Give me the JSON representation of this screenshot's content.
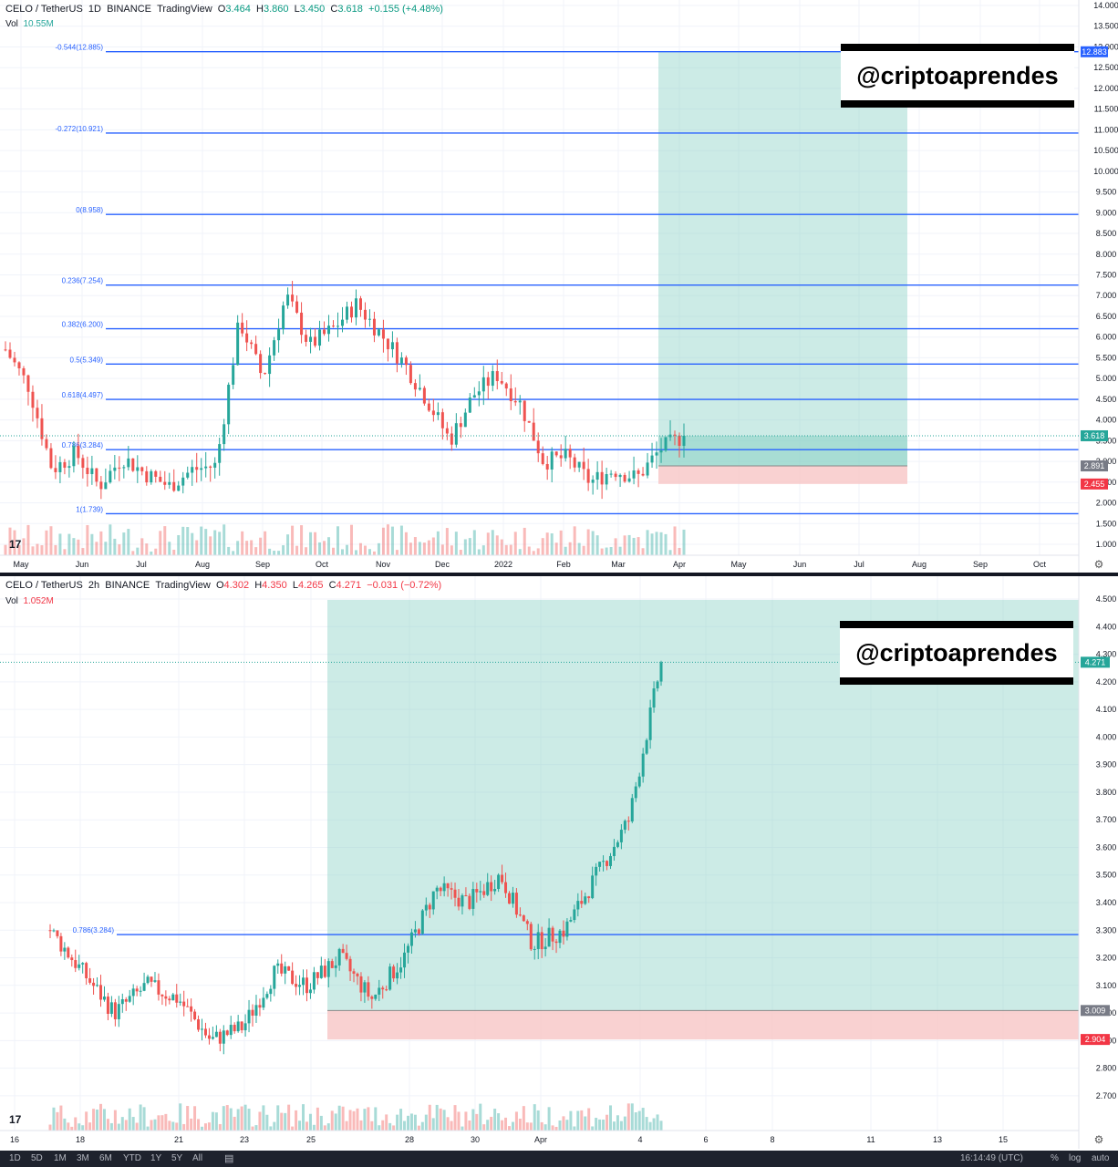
{
  "colors": {
    "up": "#26a69a",
    "down": "#ef5350",
    "fib": "#2962ff",
    "target_zone": "#8fd3c8",
    "stop_zone": "#f7c6c6",
    "axis_text": "#131722"
  },
  "top": {
    "symbol": "CELO / TetherUS",
    "interval": "1D",
    "exchange": "BINANCE",
    "source": "TradingView",
    "o_label": "O",
    "o": "3.464",
    "h_label": "H",
    "h": "3.860",
    "l_label": "L",
    "l": "3.450",
    "c_label": "C",
    "c": "3.618",
    "change": "+0.155 (+4.48%)",
    "vol_label": "Vol",
    "vol": "10.55M"
  },
  "bottom": {
    "symbol": "CELO / TetherUS",
    "interval": "2h",
    "exchange": "BINANCE",
    "source": "TradingView",
    "o_label": "O",
    "o": "4.302",
    "h_label": "H",
    "h": "4.350",
    "l_label": "L",
    "l": "4.265",
    "c_label": "C",
    "c": "4.271",
    "change": "−0.031 (−0.72%)",
    "vol_label": "Vol",
    "vol": "1.052M"
  },
  "watermark": "@criptoaprendes",
  "bottom_bar": {
    "ranges": [
      "1D",
      "5D",
      "1M",
      "3M",
      "6M",
      "YTD",
      "1Y",
      "5Y",
      "All"
    ],
    "time": "16:14:49 (UTC)",
    "percent": "%",
    "log": "log",
    "auto": "auto"
  },
  "chart_data": [
    {
      "type": "candlestick",
      "title": "CELO / TetherUS 1D BINANCE",
      "ylim": [
        1.0,
        14.0
      ],
      "y_ticks": [
        "1.000",
        "1.500",
        "2.000",
        "2.500",
        "3.000",
        "3.500",
        "4.000",
        "4.500",
        "5.000",
        "5.500",
        "6.000",
        "6.500",
        "7.000",
        "7.500",
        "8.000",
        "8.500",
        "9.000",
        "9.500",
        "10.000",
        "10.500",
        "11.000",
        "11.500",
        "12.000",
        "12.500",
        "13.000",
        "13.500",
        "14.000"
      ],
      "x_ticks": [
        "May",
        "Jun",
        "Jul",
        "Aug",
        "Sep",
        "Oct",
        "Nov",
        "Dec",
        "2022",
        "Feb",
        "Mar",
        "Apr",
        "May",
        "Jun",
        "Jul",
        "Aug",
        "Sep",
        "Oct"
      ],
      "fib_levels": [
        {
          "label": "-0.544(12.885)",
          "value": 12.885
        },
        {
          "label": "-0.272(10.921)",
          "value": 10.921
        },
        {
          "label": "0(8.958)",
          "value": 8.958
        },
        {
          "label": "0.236(7.254)",
          "value": 7.254
        },
        {
          "label": "0.382(6.200)",
          "value": 6.2
        },
        {
          "label": "0.5(5.349)",
          "value": 5.349
        },
        {
          "label": "0.618(4.497)",
          "value": 4.497
        },
        {
          "label": "0.786(3.284)",
          "value": 3.284
        },
        {
          "label": "1(1.739)",
          "value": 1.739
        }
      ],
      "position": {
        "target": 12.883,
        "entry": 2.891,
        "stop": 2.455,
        "last": 3.618
      },
      "price_badges": [
        "12.883",
        "3.618",
        "2.891",
        "2.455"
      ],
      "close_series": [
        {
          "m": "May",
          "v": 5.7
        },
        {
          "m": "May",
          "v": 4.8
        },
        {
          "m": "Jun",
          "v": 2.8
        },
        {
          "m": "Jun",
          "v": 3.2
        },
        {
          "m": "Jun",
          "v": 2.4
        },
        {
          "m": "Jul",
          "v": 3.1
        },
        {
          "m": "Jul",
          "v": 2.7
        },
        {
          "m": "Aug",
          "v": 2.4
        },
        {
          "m": "Aug",
          "v": 2.8
        },
        {
          "m": "Aug",
          "v": 2.9
        },
        {
          "m": "Sep",
          "v": 6.4
        },
        {
          "m": "Sep",
          "v": 5.0
        },
        {
          "m": "Oct",
          "v": 7.0
        },
        {
          "m": "Oct",
          "v": 5.8
        },
        {
          "m": "Oct",
          "v": 6.2
        },
        {
          "m": "Nov",
          "v": 6.8
        },
        {
          "m": "Nov",
          "v": 6.1
        },
        {
          "m": "Nov",
          "v": 5.4
        },
        {
          "m": "Dec",
          "v": 4.5
        },
        {
          "m": "Dec",
          "v": 3.5
        },
        {
          "m": "Dec",
          "v": 4.6
        },
        {
          "m": "2022",
          "v": 5.1
        },
        {
          "m": "2022",
          "v": 4.4
        },
        {
          "m": "Feb",
          "v": 3.0
        },
        {
          "m": "Feb",
          "v": 3.1
        },
        {
          "m": "Feb",
          "v": 2.5
        },
        {
          "m": "Mar",
          "v": 2.8
        },
        {
          "m": "Mar",
          "v": 2.6
        },
        {
          "m": "Mar",
          "v": 3.3
        },
        {
          "m": "Apr",
          "v": 3.618
        }
      ]
    },
    {
      "type": "candlestick",
      "title": "CELO / TetherUS 2h BINANCE",
      "ylim": [
        2.65,
        4.52
      ],
      "y_ticks": [
        "2.700",
        "2.800",
        "2.900",
        "3.000",
        "3.100",
        "3.200",
        "3.300",
        "3.400",
        "3.500",
        "3.600",
        "3.700",
        "3.800",
        "3.900",
        "4.000",
        "4.100",
        "4.200",
        "4.300",
        "4.400",
        "4.500"
      ],
      "x_ticks": [
        "16",
        "18",
        "21",
        "23",
        "25",
        "28",
        "30",
        "Apr",
        "4",
        "6",
        "8",
        "11",
        "13",
        "15"
      ],
      "fib_levels": [
        {
          "label": "0.786(3.284)",
          "value": 3.284
        }
      ],
      "position": {
        "target": 4.497,
        "entry": 3.009,
        "stop": 2.904,
        "last": 4.271
      },
      "price_badges": [
        "4.271",
        "3.009",
        "2.904"
      ],
      "close_series": [
        {
          "d": "16",
          "v": 3.3
        },
        {
          "d": "17",
          "v": 3.15
        },
        {
          "d": "18",
          "v": 3.0
        },
        {
          "d": "19",
          "v": 3.1
        },
        {
          "d": "20",
          "v": 3.05
        },
        {
          "d": "21",
          "v": 2.9
        },
        {
          "d": "22",
          "v": 2.95
        },
        {
          "d": "23",
          "v": 3.15
        },
        {
          "d": "24",
          "v": 3.1
        },
        {
          "d": "25",
          "v": 3.2
        },
        {
          "d": "26",
          "v": 3.05
        },
        {
          "d": "27",
          "v": 3.2
        },
        {
          "d": "28",
          "v": 3.45
        },
        {
          "d": "29",
          "v": 3.4
        },
        {
          "d": "30",
          "v": 3.5
        },
        {
          "d": "31",
          "v": 3.25
        },
        {
          "d": "Apr",
          "v": 3.3
        },
        {
          "d": "2",
          "v": 3.5
        },
        {
          "d": "3",
          "v": 3.7
        },
        {
          "d": "4",
          "v": 4.271
        }
      ]
    }
  ]
}
